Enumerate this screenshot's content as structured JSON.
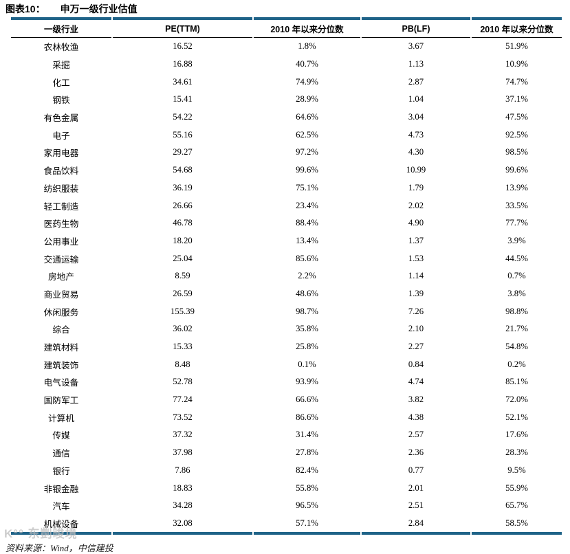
{
  "title": {
    "figure_label": "图表10：",
    "figure_title": "申万一级行业估值"
  },
  "table": {
    "headers": [
      "一级行业",
      "PE(TTM)",
      "2010 年以来分位数",
      "PB(LF)",
      "2010 年以来分位数"
    ],
    "rows": [
      [
        "农林牧渔",
        "16.52",
        "1.8%",
        "3.67",
        "51.9%"
      ],
      [
        "采掘",
        "16.88",
        "40.7%",
        "1.13",
        "10.9%"
      ],
      [
        "化工",
        "34.61",
        "74.9%",
        "2.87",
        "74.7%"
      ],
      [
        "钢铁",
        "15.41",
        "28.9%",
        "1.04",
        "37.1%"
      ],
      [
        "有色金属",
        "54.22",
        "64.6%",
        "3.04",
        "47.5%"
      ],
      [
        "电子",
        "55.16",
        "62.5%",
        "4.73",
        "92.5%"
      ],
      [
        "家用电器",
        "29.27",
        "97.2%",
        "4.30",
        "98.5%"
      ],
      [
        "食品饮料",
        "54.68",
        "99.6%",
        "10.99",
        "99.6%"
      ],
      [
        "纺织服装",
        "36.19",
        "75.1%",
        "1.79",
        "13.9%"
      ],
      [
        "轻工制造",
        "26.66",
        "23.4%",
        "2.02",
        "33.5%"
      ],
      [
        "医药生物",
        "46.78",
        "88.4%",
        "4.90",
        "77.7%"
      ],
      [
        "公用事业",
        "18.20",
        "13.4%",
        "1.37",
        "3.9%"
      ],
      [
        "交通运输",
        "25.04",
        "85.6%",
        "1.53",
        "44.5%"
      ],
      [
        "房地产",
        "8.59",
        "2.2%",
        "1.14",
        "0.7%"
      ],
      [
        "商业贸易",
        "26.59",
        "48.6%",
        "1.39",
        "3.8%"
      ],
      [
        "休闲服务",
        "155.39",
        "98.7%",
        "7.26",
        "98.8%"
      ],
      [
        "综合",
        "36.02",
        "35.8%",
        "2.10",
        "21.7%"
      ],
      [
        "建筑材料",
        "15.33",
        "25.8%",
        "2.27",
        "54.8%"
      ],
      [
        "建筑装饰",
        "8.48",
        "0.1%",
        "0.84",
        "0.2%"
      ],
      [
        "电气设备",
        "52.78",
        "93.9%",
        "4.74",
        "85.1%"
      ],
      [
        "国防军工",
        "77.24",
        "66.6%",
        "3.82",
        "72.0%"
      ],
      [
        "计算机",
        "73.52",
        "86.6%",
        "4.38",
        "52.1%"
      ],
      [
        "传媒",
        "37.32",
        "31.4%",
        "2.57",
        "17.6%"
      ],
      [
        "通信",
        "37.98",
        "27.8%",
        "2.36",
        "28.3%"
      ],
      [
        "银行",
        "7.86",
        "82.4%",
        "0.77",
        "9.5%"
      ],
      [
        "非银金融",
        "18.83",
        "55.8%",
        "2.01",
        "55.9%"
      ],
      [
        "汽车",
        "34.28",
        "96.5%",
        "2.51",
        "65.7%"
      ],
      [
        "机械设备",
        "32.08",
        "57.1%",
        "2.84",
        "58.5%"
      ]
    ]
  },
  "footer": {
    "source": "资料来源：Wind，中信建投"
  },
  "watermark": {
    "text": "K°° 东剴晙境"
  },
  "colors": {
    "table_border_blue": "#1F6388",
    "header_underline": "#000000",
    "text": "#000000"
  }
}
